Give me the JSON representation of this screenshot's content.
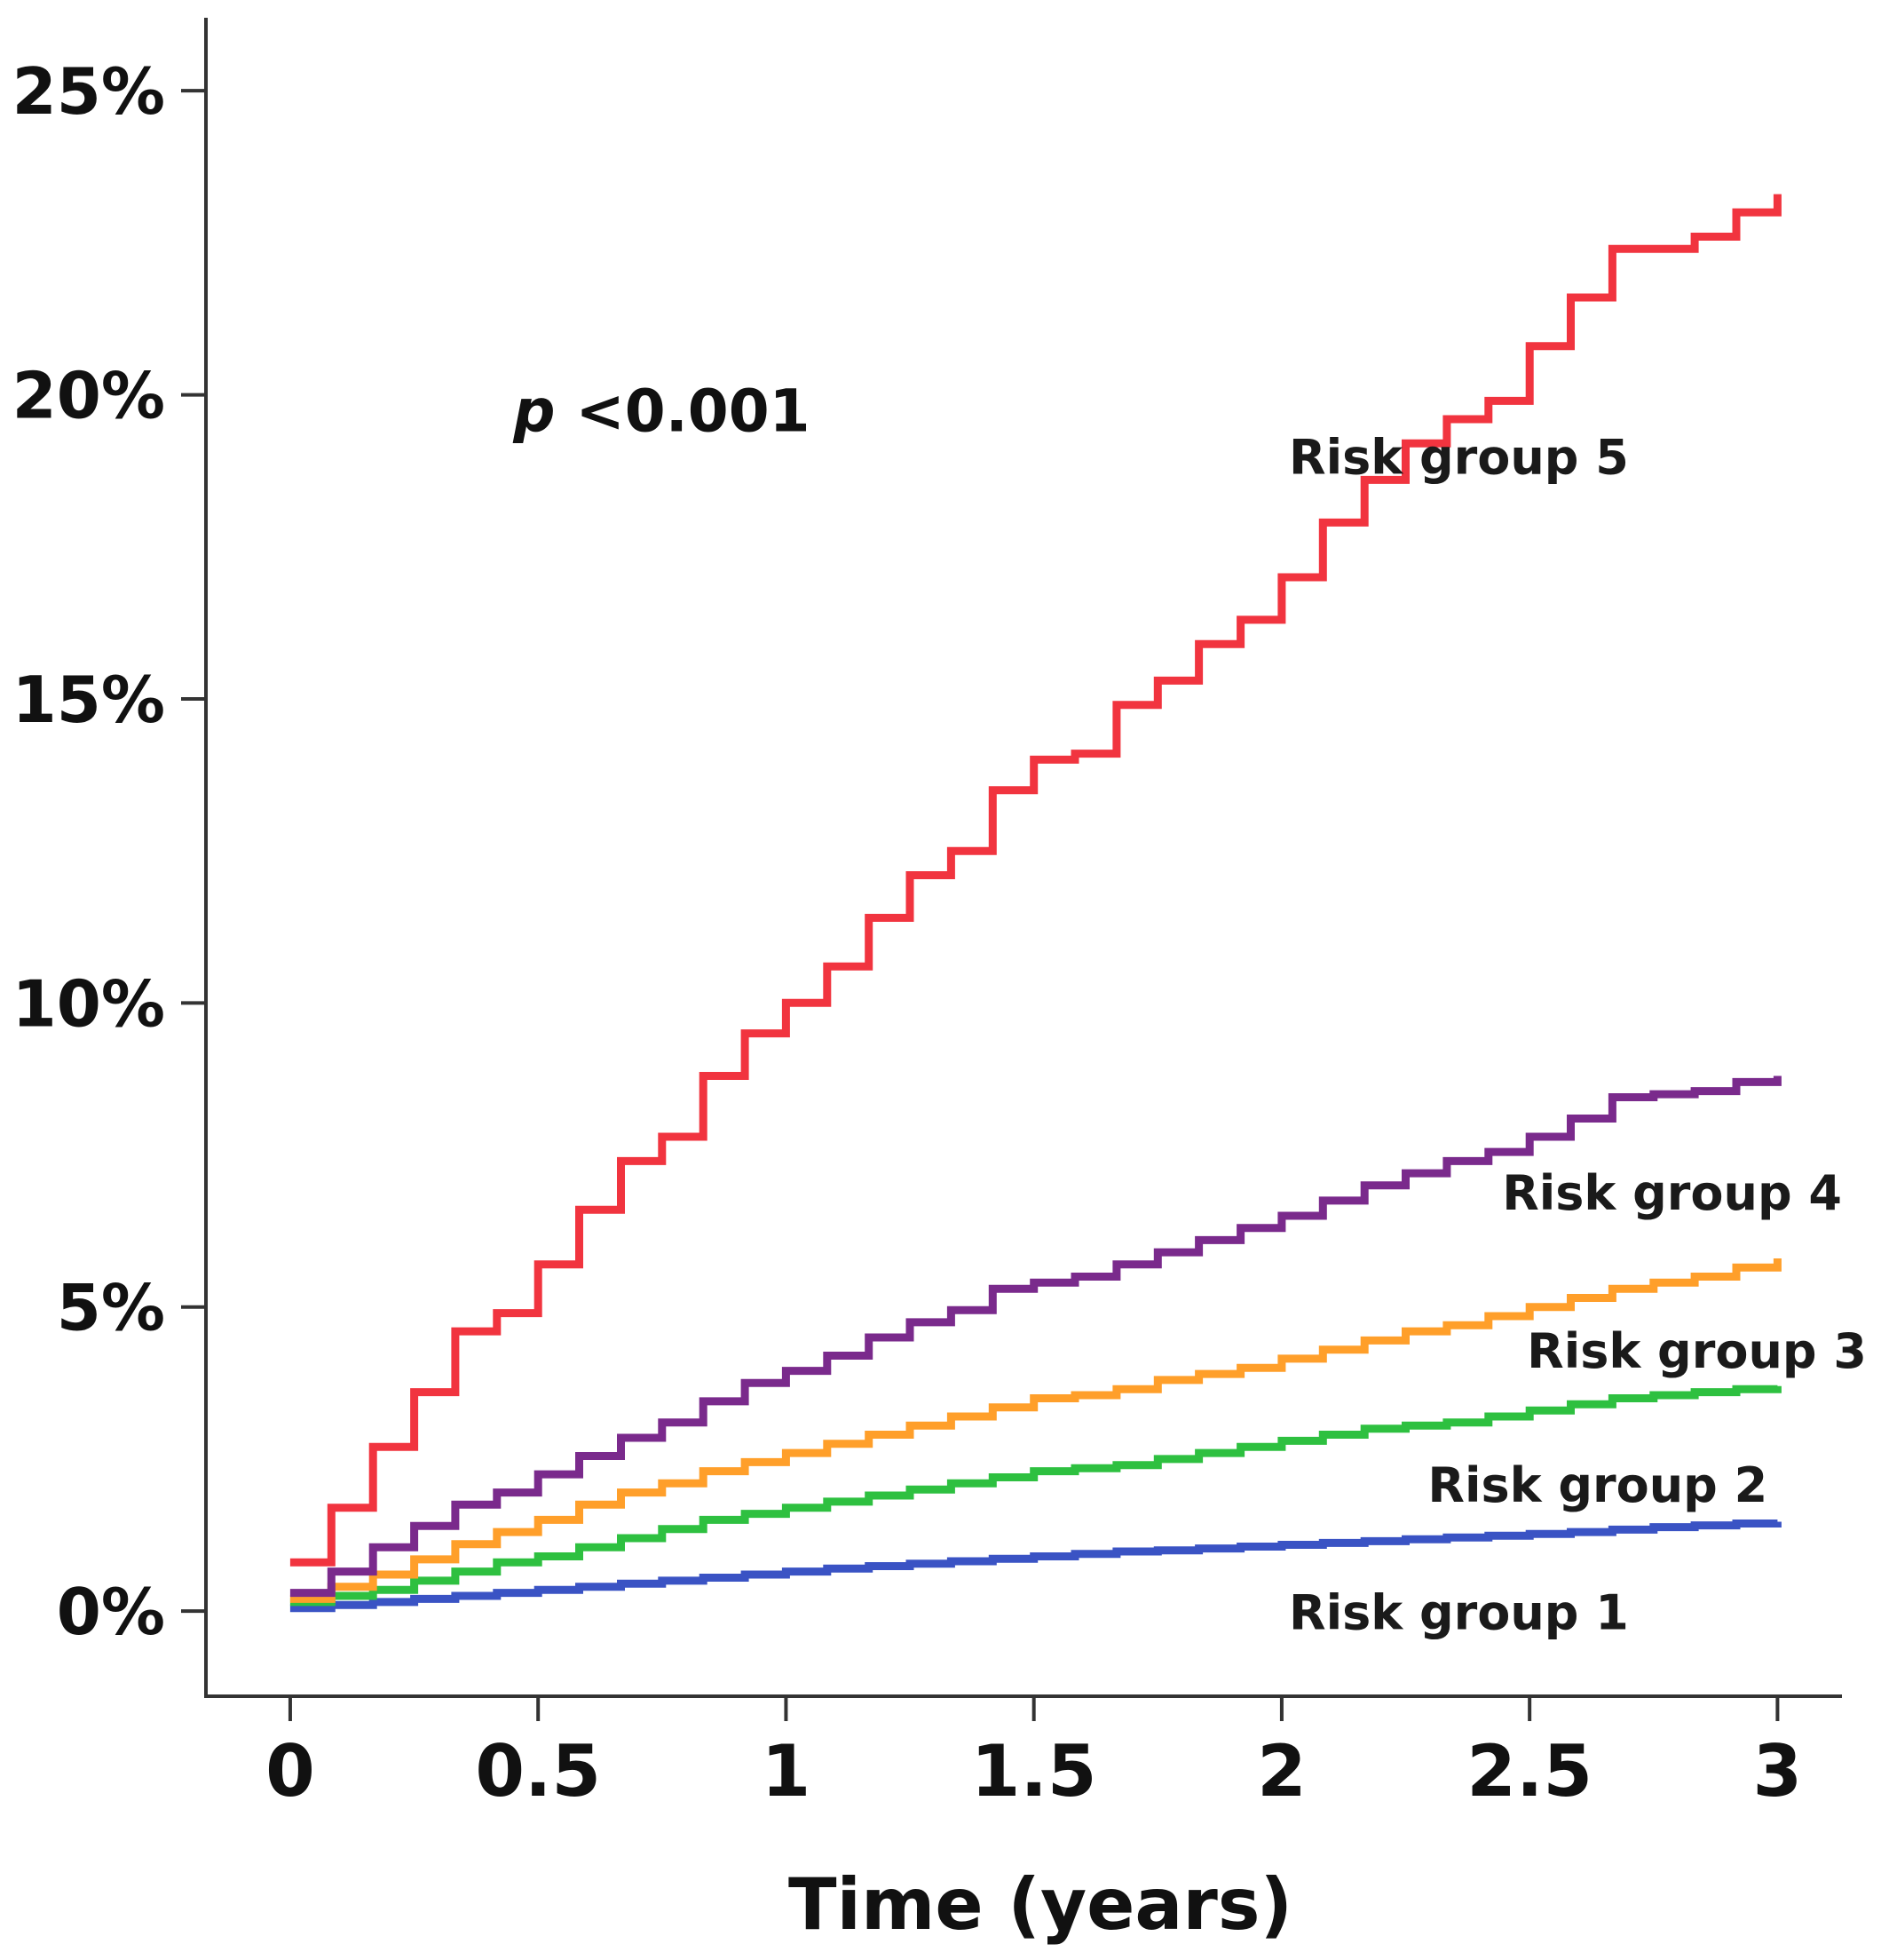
{
  "chart_data": {
    "type": "line",
    "title": "",
    "xlabel": "Time (years)",
    "ylabel": "",
    "xlim": [
      -0.17,
      3.13
    ],
    "ylim": [
      -1.4,
      26.2
    ],
    "xticks": [
      0,
      0.5,
      1,
      1.5,
      2,
      2.5,
      3
    ],
    "xtick_labels": [
      "0",
      "0.5",
      "1",
      "1.5",
      "2",
      "2.5",
      "3"
    ],
    "yticks": [
      0,
      5,
      10,
      15,
      20,
      25
    ],
    "ytick_labels": [
      "0%",
      "5%",
      "10%",
      "15%",
      "20%",
      "25%"
    ],
    "grid": false,
    "step": true,
    "annotation": {
      "italic_part": "p",
      "text": " <0.001",
      "x": 0.45,
      "y": 19.4
    },
    "x": [
      0,
      0.083,
      0.167,
      0.25,
      0.333,
      0.417,
      0.5,
      0.583,
      0.667,
      0.75,
      0.833,
      0.917,
      1.0,
      1.083,
      1.167,
      1.25,
      1.333,
      1.417,
      1.5,
      1.583,
      1.667,
      1.75,
      1.833,
      1.917,
      2.0,
      2.083,
      2.167,
      2.25,
      2.333,
      2.417,
      2.5,
      2.583,
      2.667,
      2.75,
      2.833,
      2.917,
      3.0
    ],
    "series": [
      {
        "name": "Risk group 1",
        "color": "#3a53c4",
        "label_pos": [
          2.7,
          -0.3
        ],
        "values": [
          0.05,
          0.1,
          0.15,
          0.2,
          0.25,
          0.3,
          0.35,
          0.4,
          0.45,
          0.5,
          0.55,
          0.6,
          0.65,
          0.7,
          0.74,
          0.78,
          0.82,
          0.86,
          0.9,
          0.94,
          0.98,
          1.0,
          1.03,
          1.06,
          1.09,
          1.12,
          1.15,
          1.18,
          1.21,
          1.24,
          1.27,
          1.3,
          1.34,
          1.38,
          1.41,
          1.44,
          1.47
        ]
      },
      {
        "name": "Risk group 2",
        "color": "#2ec040",
        "label_pos": [
          2.98,
          1.8
        ],
        "values": [
          0.15,
          0.25,
          0.35,
          0.5,
          0.65,
          0.8,
          0.9,
          1.05,
          1.2,
          1.35,
          1.5,
          1.6,
          1.7,
          1.8,
          1.9,
          2.0,
          2.1,
          2.2,
          2.3,
          2.35,
          2.4,
          2.5,
          2.6,
          2.7,
          2.8,
          2.9,
          3.0,
          3.05,
          3.1,
          3.2,
          3.3,
          3.4,
          3.5,
          3.55,
          3.6,
          3.65,
          3.7
        ]
      },
      {
        "name": "Risk group 3",
        "color": "#ff9f2a",
        "label_pos": [
          3.18,
          4.0
        ],
        "values": [
          0.2,
          0.4,
          0.6,
          0.85,
          1.1,
          1.3,
          1.5,
          1.75,
          1.95,
          2.1,
          2.3,
          2.45,
          2.6,
          2.75,
          2.9,
          3.05,
          3.2,
          3.35,
          3.5,
          3.55,
          3.65,
          3.8,
          3.9,
          4.0,
          4.15,
          4.3,
          4.45,
          4.6,
          4.7,
          4.85,
          5.0,
          5.15,
          5.3,
          5.4,
          5.5,
          5.65,
          5.8
        ]
      },
      {
        "name": "Risk group 4",
        "color": "#7a2a8c",
        "label_pos": [
          3.13,
          6.6
        ],
        "values": [
          0.3,
          0.65,
          1.05,
          1.4,
          1.75,
          1.95,
          2.25,
          2.55,
          2.85,
          3.1,
          3.45,
          3.75,
          3.95,
          4.2,
          4.5,
          4.75,
          4.95,
          5.3,
          5.4,
          5.5,
          5.7,
          5.9,
          6.1,
          6.3,
          6.5,
          6.75,
          7.0,
          7.2,
          7.4,
          7.55,
          7.8,
          8.1,
          8.45,
          8.5,
          8.55,
          8.7,
          8.8
        ]
      },
      {
        "name": "Risk group 5",
        "color": "#f1343f",
        "label_pos": [
          2.7,
          18.7
        ],
        "values": [
          0.8,
          1.7,
          2.7,
          3.6,
          4.6,
          4.9,
          5.7,
          6.6,
          7.4,
          7.8,
          8.8,
          9.5,
          10.0,
          10.6,
          11.4,
          12.1,
          12.5,
          13.5,
          14.0,
          14.1,
          14.9,
          15.3,
          15.9,
          16.3,
          17.0,
          17.9,
          18.6,
          19.2,
          19.6,
          19.9,
          20.8,
          21.6,
          22.4,
          22.4,
          22.6,
          23.0,
          23.3
        ]
      }
    ]
  }
}
